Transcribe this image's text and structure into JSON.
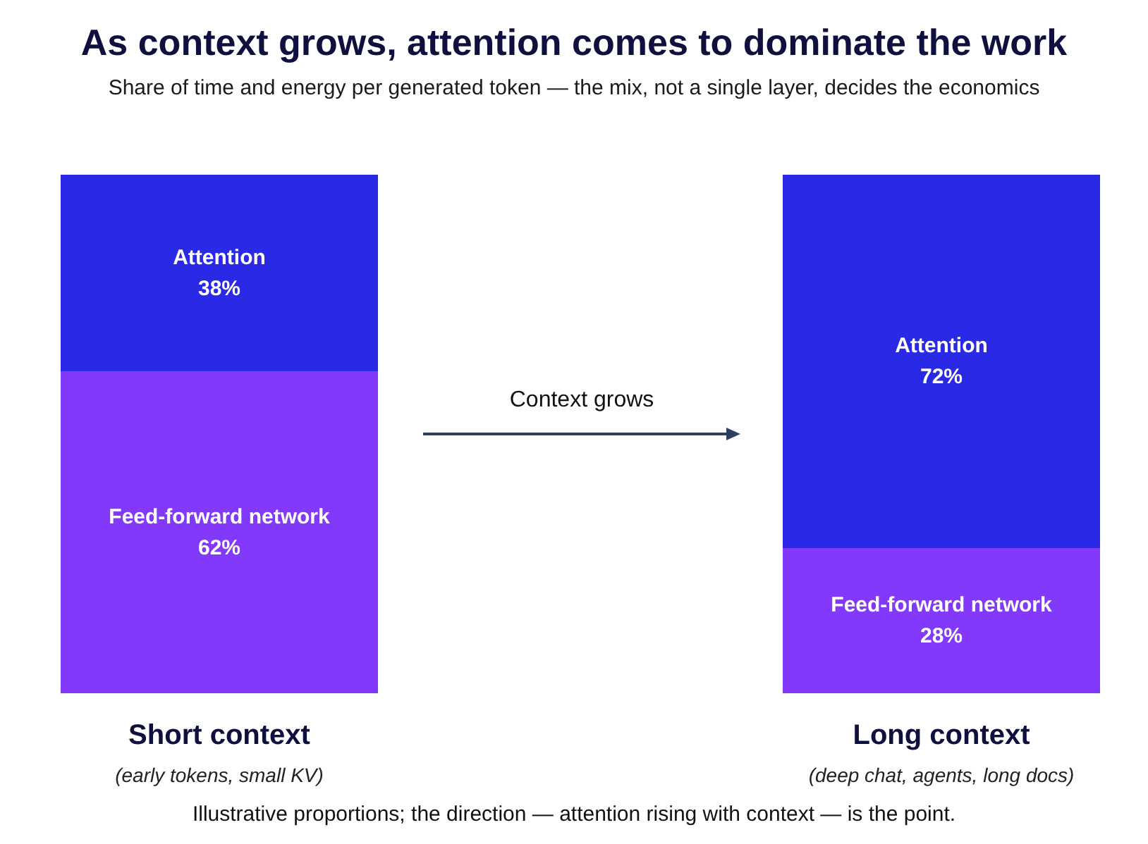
{
  "chart_data": {
    "type": "bar",
    "stacked": true,
    "title": "As context grows, attention comes to dominate the work",
    "subtitle": "Share of time and energy per generated token — the mix, not a single layer, decides the economics",
    "categories": [
      "Short context\n(early tokens, small KV)",
      "Long context\n(deep chat, agents, long docs)"
    ],
    "series": [
      {
        "name": "Feed-forward network",
        "color": "#8239fb",
        "values": [
          62,
          28
        ],
        "value_labels": [
          "62%",
          "28%"
        ]
      },
      {
        "name": "Attention",
        "color": "#2a2ae6",
        "values": [
          38,
          72
        ],
        "value_labels": [
          "38%",
          "72%"
        ]
      }
    ],
    "tick_labels": "x",
    "annotations": [
      "Context grows",
      "Illustrative proportions; the direction — attention rising with context — is the point."
    ]
  }
}
